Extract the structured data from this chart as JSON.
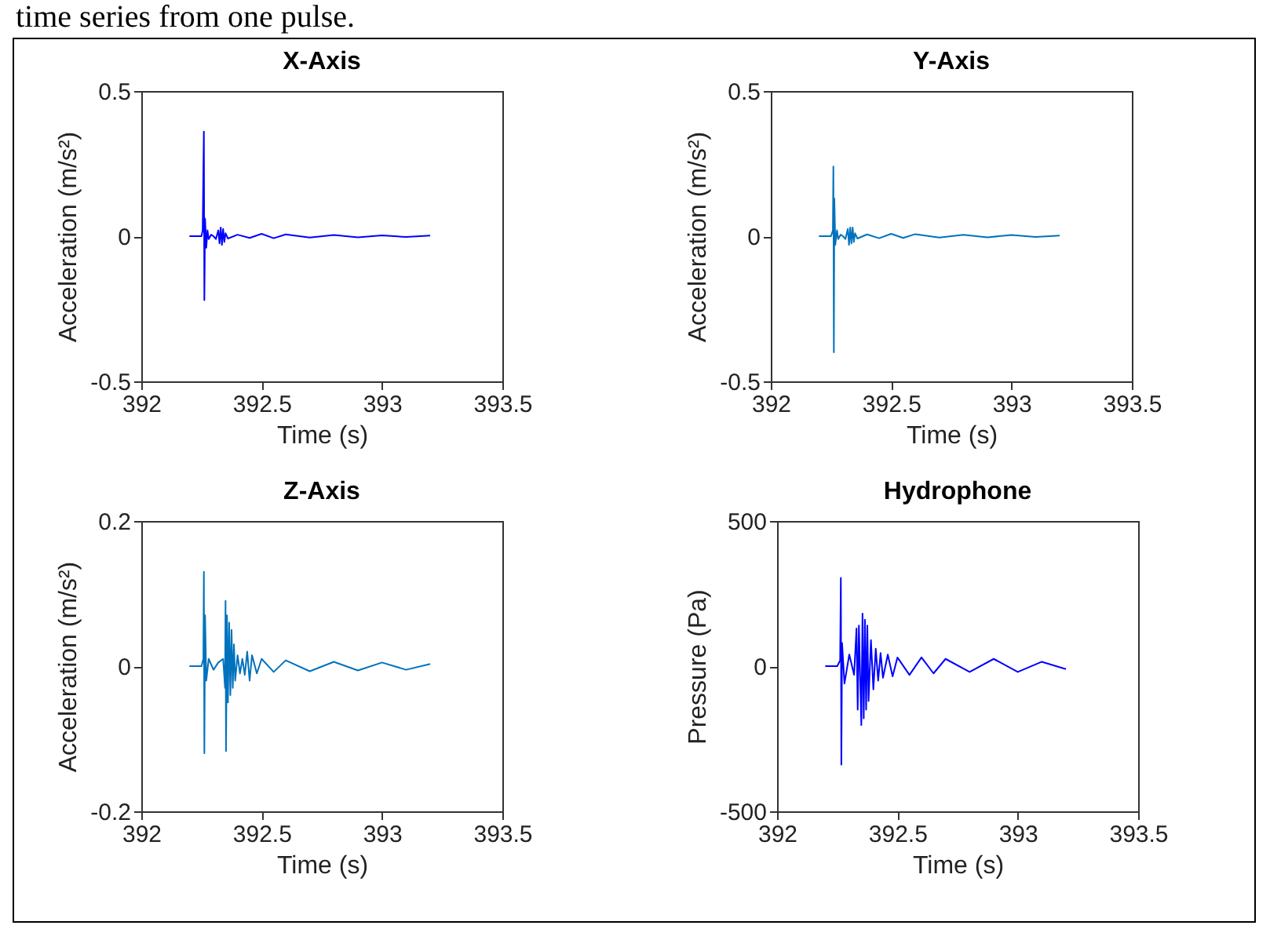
{
  "chart_data": [
    {
      "type": "line",
      "title": "X-Axis",
      "xlabel": "Time (s)",
      "ylabel": "Acceleration (m/s²)",
      "annotations": [
        "time series from one pulse."
      ],
      "x": [
        392.2,
        392.25,
        392.255,
        392.26,
        392.262,
        392.265,
        392.27,
        392.275,
        392.28,
        392.29,
        392.3,
        392.31,
        392.32,
        392.325,
        392.33,
        392.335,
        392.34,
        392.345,
        392.35,
        392.36,
        392.4,
        392.45,
        392.5,
        392.55,
        392.6,
        392.7,
        392.8,
        392.9,
        393.0,
        393.1,
        393.2
      ],
      "series": [
        {
          "color": "#0000ff",
          "values": [
            0,
            0,
            0.02,
            0.36,
            -0.22,
            0.06,
            -0.04,
            0.02,
            -0.01,
            0.005,
            0,
            -0.01,
            0.02,
            -0.025,
            0.03,
            -0.03,
            0.025,
            -0.02,
            0.01,
            -0.008,
            0.005,
            -0.006,
            0.008,
            -0.007,
            0.006,
            -0.005,
            0.004,
            -0.004,
            0.003,
            -0.003,
            0.002
          ]
        }
      ],
      "xlim": [
        392,
        393.5
      ],
      "xticks": [
        392,
        392.5,
        393,
        393.5
      ],
      "ylim": [
        -0.5,
        0.5
      ],
      "yticks": [
        -0.5,
        0,
        0.5
      ]
    },
    {
      "type": "line",
      "title": "Y-Axis",
      "xlabel": "Time (s)",
      "ylabel": "Acceleration (m/s²)",
      "x": [
        392.2,
        392.25,
        392.258,
        392.26,
        392.262,
        392.264,
        392.268,
        392.275,
        392.28,
        392.29,
        392.3,
        392.31,
        392.32,
        392.325,
        392.33,
        392.335,
        392.34,
        392.345,
        392.35,
        392.36,
        392.4,
        392.45,
        392.5,
        392.55,
        392.6,
        392.7,
        392.8,
        392.9,
        393.0,
        393.1,
        393.2
      ],
      "series": [
        {
          "color": "#0072bd",
          "values": [
            0,
            0,
            0.02,
            0.24,
            -0.4,
            0.13,
            -0.03,
            0.02,
            -0.01,
            0.005,
            0,
            -0.01,
            0.025,
            -0.03,
            0.03,
            -0.025,
            0.03,
            -0.02,
            0.01,
            -0.008,
            0.006,
            -0.007,
            0.008,
            -0.006,
            0.007,
            -0.005,
            0.005,
            -0.004,
            0.004,
            -0.003,
            0.002
          ]
        }
      ],
      "xlim": [
        392,
        393.5
      ],
      "xticks": [
        392,
        392.5,
        393,
        393.5
      ],
      "ylim": [
        -0.5,
        0.5
      ],
      "yticks": [
        -0.5,
        0,
        0.5
      ]
    },
    {
      "type": "line",
      "title": "Z-Axis",
      "xlabel": "Time (s)",
      "ylabel": "Acceleration (m/s²)",
      "x": [
        392.2,
        392.25,
        392.258,
        392.26,
        392.262,
        392.265,
        392.27,
        392.28,
        392.3,
        392.32,
        392.34,
        392.348,
        392.35,
        392.352,
        392.356,
        392.36,
        392.365,
        392.37,
        392.375,
        392.38,
        392.385,
        392.39,
        392.4,
        392.41,
        392.42,
        392.43,
        392.44,
        392.45,
        392.46,
        392.48,
        392.5,
        392.55,
        392.6,
        392.7,
        392.8,
        392.9,
        393.0,
        393.1,
        393.2
      ],
      "series": [
        {
          "color": "#0072bd",
          "values": [
            0,
            0,
            0.01,
            0.13,
            -0.12,
            0.07,
            -0.02,
            0.01,
            -0.005,
            0.005,
            0.01,
            -0.03,
            0.09,
            -0.117,
            0.07,
            -0.05,
            0.06,
            -0.04,
            0.05,
            -0.03,
            0.03,
            -0.02,
            0.015,
            -0.01,
            0.01,
            -0.012,
            0.02,
            -0.02,
            0.015,
            -0.01,
            0.01,
            -0.008,
            0.008,
            -0.007,
            0.006,
            -0.006,
            0.005,
            -0.005,
            0.003
          ]
        }
      ],
      "xlim": [
        392,
        393.5
      ],
      "xticks": [
        392,
        392.5,
        393,
        393.5
      ],
      "ylim": [
        -0.2,
        0.2
      ],
      "yticks": [
        -0.2,
        0,
        0.2
      ]
    },
    {
      "type": "line",
      "title": "Hydrophone",
      "xlabel": "Time (s)",
      "ylabel": "Pressure (Pa)",
      "x": [
        392.2,
        392.25,
        392.262,
        392.265,
        392.267,
        392.27,
        392.28,
        392.3,
        392.32,
        392.33,
        392.335,
        392.34,
        392.35,
        392.355,
        392.36,
        392.365,
        392.37,
        392.375,
        392.38,
        392.39,
        392.4,
        392.41,
        392.42,
        392.43,
        392.44,
        392.46,
        392.48,
        392.5,
        392.55,
        392.6,
        392.65,
        392.7,
        392.8,
        392.9,
        393.0,
        393.1,
        393.2
      ],
      "series": [
        {
          "color": "#0000ff",
          "values": [
            0,
            0,
            20,
            304,
            -339,
            80,
            -60,
            40,
            -30,
            130,
            -150,
            140,
            -203,
            181,
            -180,
            160,
            -150,
            140,
            -120,
            90,
            -80,
            60,
            -50,
            45,
            -40,
            40,
            -35,
            30,
            -30,
            30,
            -25,
            25,
            -20,
            25,
            -20,
            15,
            -10
          ]
        }
      ],
      "xlim": [
        392,
        393.5
      ],
      "xticks": [
        392,
        392.5,
        393,
        393.5
      ],
      "ylim": [
        -500,
        500
      ],
      "yticks": [
        -500,
        0,
        500
      ]
    }
  ]
}
